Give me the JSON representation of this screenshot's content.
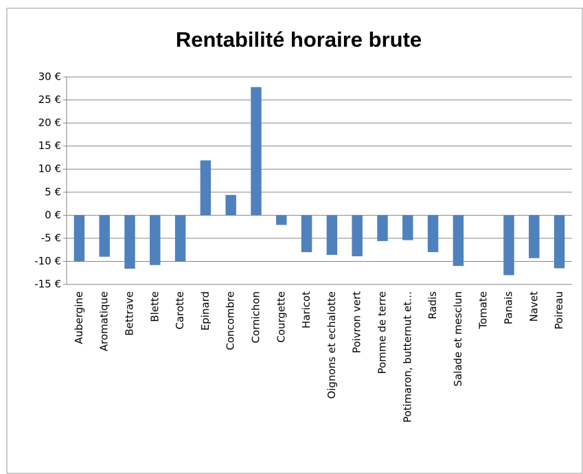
{
  "chart_data": {
    "type": "bar",
    "title": "Rentabilité horaire brute",
    "categories": [
      "Aubergine",
      "Aromatique",
      "Bettrave",
      "Blette",
      "Carotte",
      "Epinard",
      "Concombre",
      "Cornichon",
      "Courgette",
      "Haricot",
      "Oignons et echalotte",
      "Poivron vert",
      "Pomme de terre",
      "Potimaron, butternut et…",
      "Radis",
      "Salade et mesclun",
      "Tomate",
      "Panais",
      "Navet",
      "Poireau"
    ],
    "values": [
      -10,
      -9,
      -11.6,
      -10.8,
      -10.1,
      11.9,
      4.4,
      27.8,
      -2.1,
      -8,
      -8.6,
      -8.9,
      -5.6,
      -5.4,
      -8,
      -11,
      0,
      -13,
      -9.3,
      -11.5
    ],
    "color": "#4f81bd",
    "ylim": [
      -15,
      30
    ],
    "yticks": [
      {
        "value": -15,
        "label": "-15 €"
      },
      {
        "value": -10,
        "label": "-10 €"
      },
      {
        "value": -5,
        "label": "-5 €"
      },
      {
        "value": 0,
        "label": "0 €"
      },
      {
        "value": 5,
        "label": "5 €"
      },
      {
        "value": 10,
        "label": "10 €"
      },
      {
        "value": 15,
        "label": "15 €"
      },
      {
        "value": 20,
        "label": "20 €"
      },
      {
        "value": 25,
        "label": "25 €"
      },
      {
        "value": 30,
        "label": "30 €"
      }
    ],
    "grid": true
  }
}
